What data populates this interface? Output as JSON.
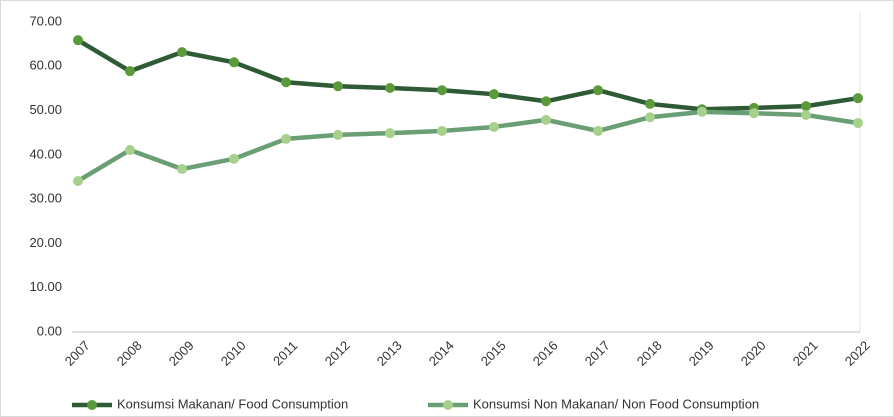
{
  "chart_data": {
    "type": "line",
    "categories": [
      "2007",
      "2008",
      "2009",
      "2010",
      "2011",
      "2012",
      "2013",
      "2014",
      "2015",
      "2016",
      "2017",
      "2018",
      "2019",
      "2020",
      "2021",
      "2022"
    ],
    "series": [
      {
        "name": "Konsumsi Makanan/ Food Consumption",
        "color": "#2e5a35",
        "marker_color": "#5b9a3a",
        "values": [
          65.9,
          58.9,
          63.2,
          60.9,
          56.4,
          55.5,
          55.1,
          54.6,
          53.7,
          52.1,
          54.6,
          51.5,
          50.3,
          50.6,
          51.0,
          52.8
        ]
      },
      {
        "name": "Konsumsi Non Makanan/ Non Food Consumption",
        "color": "#6a9e74",
        "marker_color": "#a8d08d",
        "values": [
          34.1,
          41.1,
          36.8,
          39.1,
          43.6,
          44.5,
          44.9,
          45.4,
          46.3,
          47.9,
          45.4,
          48.5,
          49.7,
          49.4,
          49.0,
          47.2
        ]
      }
    ],
    "ylim": [
      0,
      70
    ],
    "yticks": [
      {
        "value": 0,
        "label": "0.00"
      },
      {
        "value": 10,
        "label": "10.00"
      },
      {
        "value": 20,
        "label": "20.00"
      },
      {
        "value": 30,
        "label": "30.00"
      },
      {
        "value": 40,
        "label": "40.00"
      },
      {
        "value": 50,
        "label": "50.00"
      },
      {
        "value": 60,
        "label": "60.00"
      },
      {
        "value": 70,
        "label": "70.00"
      }
    ],
    "grid": false,
    "legend": "bottom"
  }
}
